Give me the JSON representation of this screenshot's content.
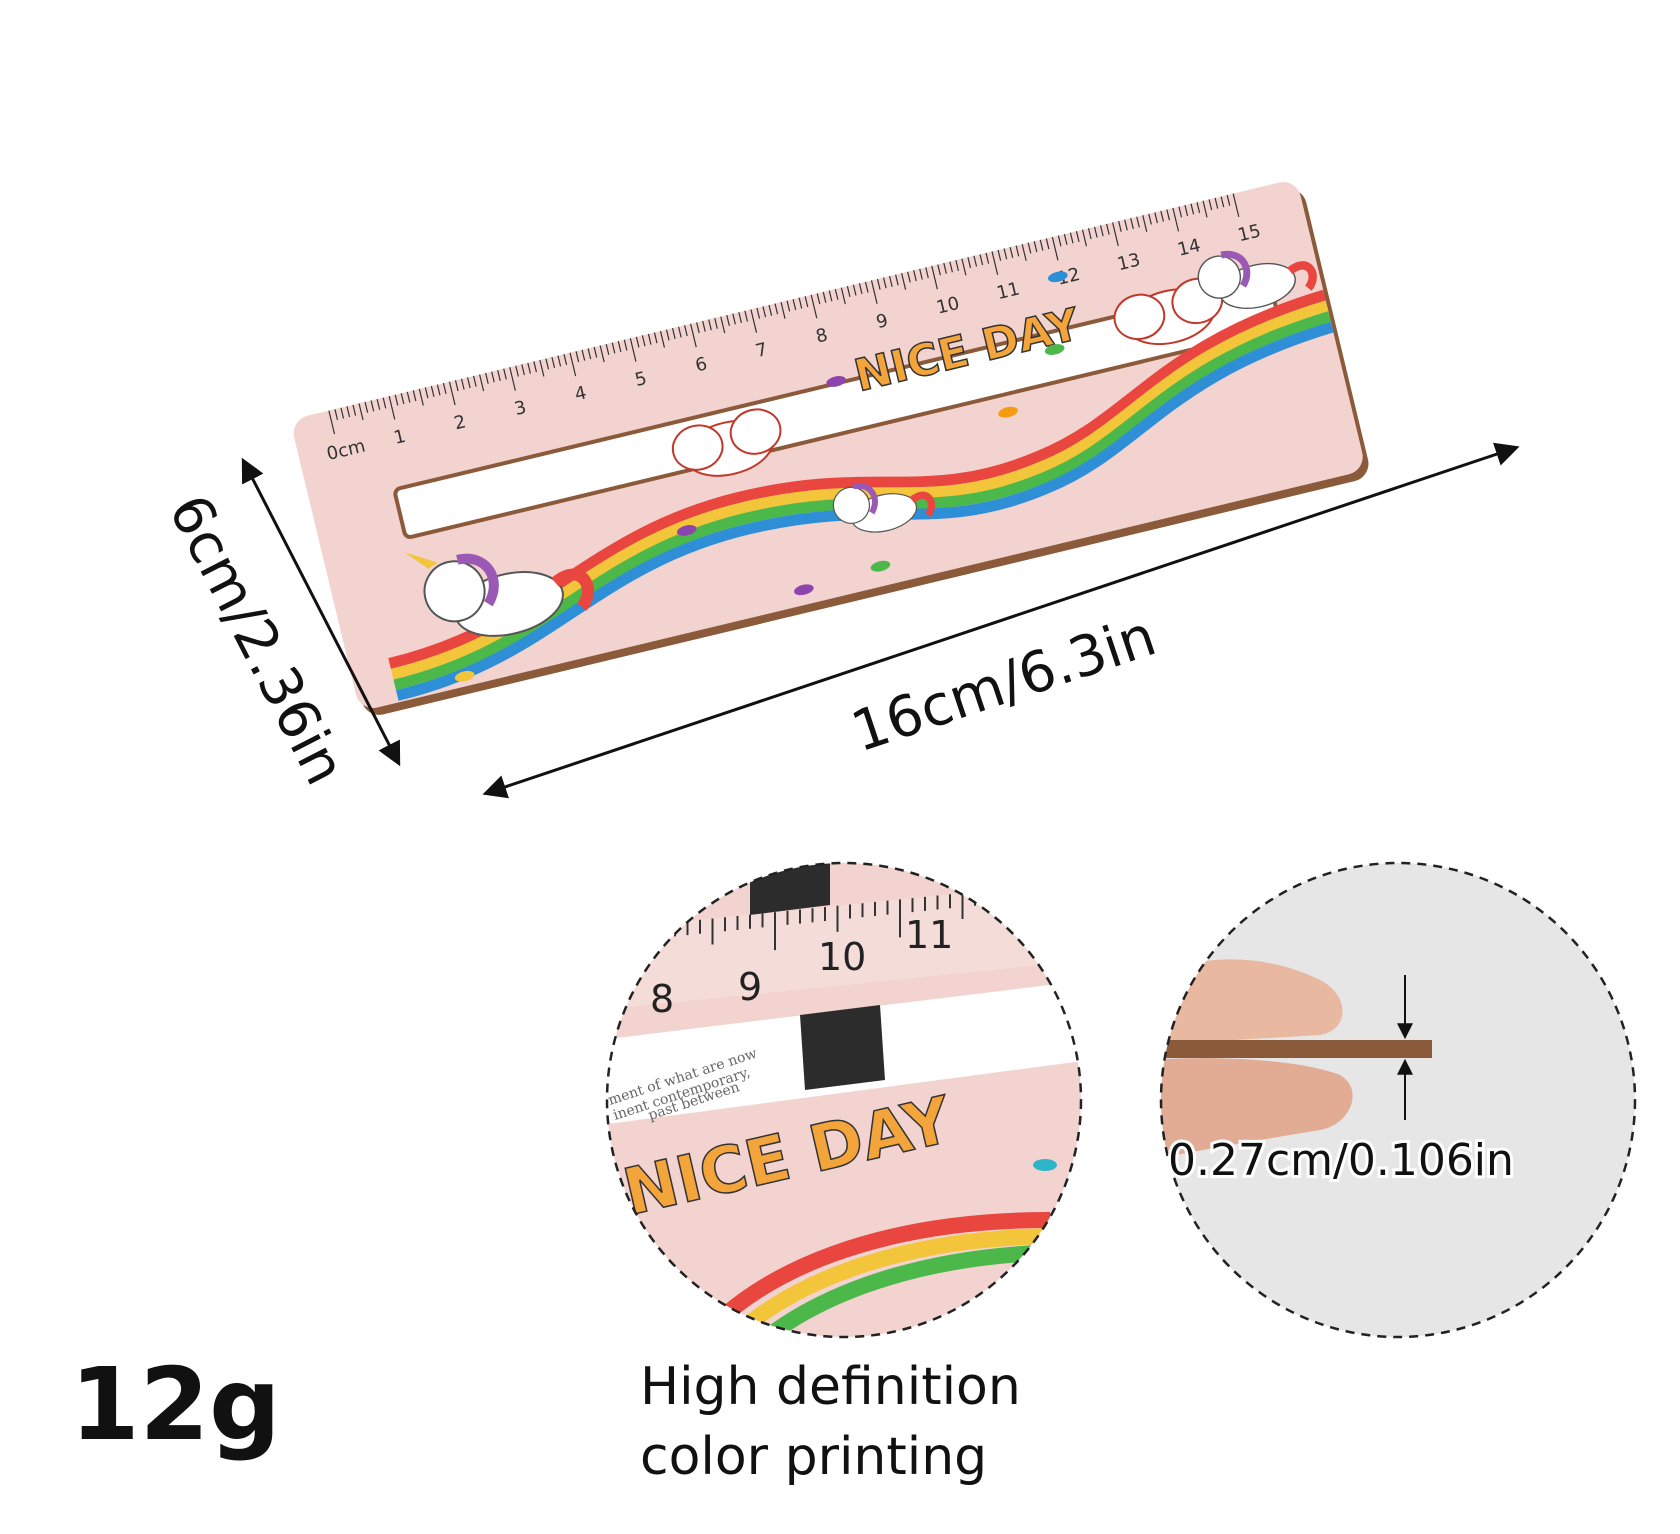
{
  "product": {
    "ruler_labels": [
      "0cm",
      "1",
      "2",
      "3",
      "4",
      "5",
      "6",
      "7",
      "8",
      "9",
      "10",
      "11",
      "12",
      "13",
      "14",
      "15"
    ],
    "slogan": "NICE DAY"
  },
  "dimensions": {
    "width_label": "16cm/6.3in",
    "height_label": "6cm/2.36in",
    "thickness_label": "0.27cm/0.106in"
  },
  "detail_zoom": {
    "ruler_labels": [
      "8",
      "9",
      "10",
      "11"
    ],
    "slogan": "NICE DAY",
    "caption_line1": "High definition",
    "caption_line2": "color printing"
  },
  "weight": "12g",
  "colors": {
    "ruler_pink": "#f2d3d0",
    "wood_edge": "#8a5a3a",
    "rainbow": [
      "#e8463f",
      "#f3c53a",
      "#4cb84a",
      "#2f8fd6"
    ]
  }
}
